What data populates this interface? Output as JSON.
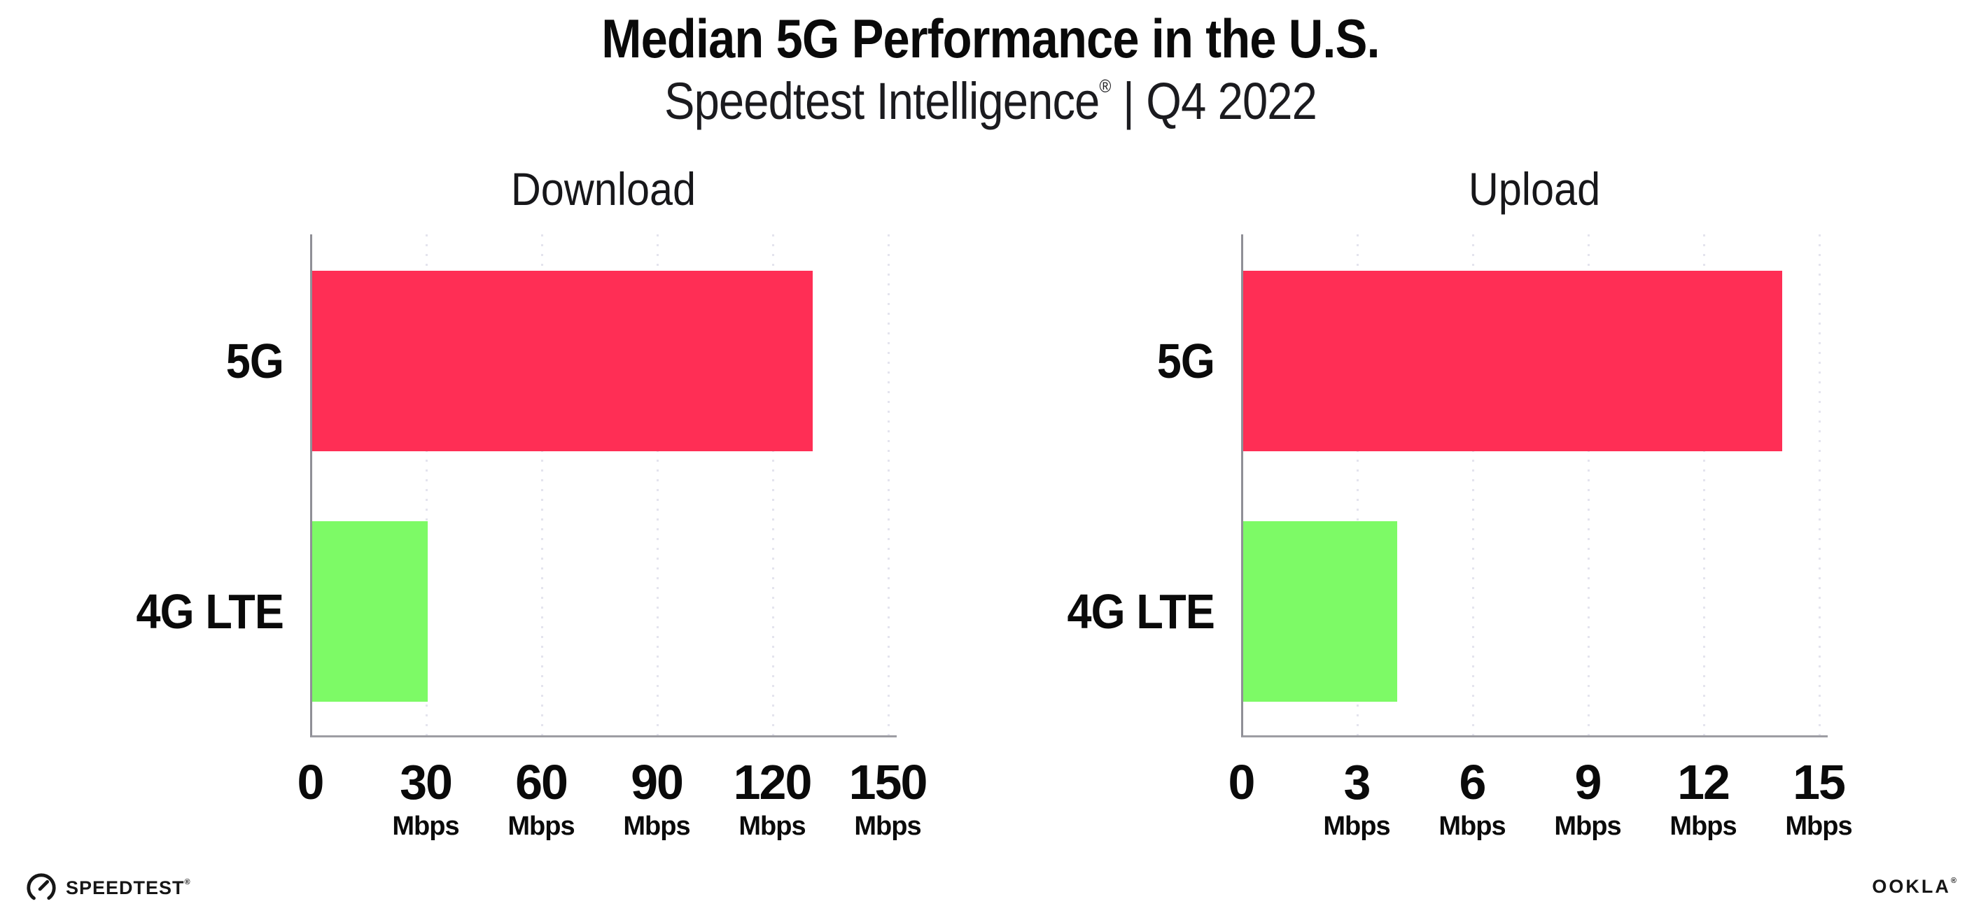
{
  "header": {
    "title": "Median 5G Performance in the U.S.",
    "subtitle_brand": "Speedtest Intelligence",
    "subtitle_reg": "®",
    "subtitle_rest": "| Q4 2022"
  },
  "footer": {
    "speedtest_label": "SPEEDTEST",
    "speedtest_reg": "®",
    "ookla_label": "OOKLA",
    "ookla_reg": "®"
  },
  "colors": {
    "bar_5g": "#ff2e55",
    "bar_4g_lte": "#7dfa66",
    "axis": "#8f8f96",
    "grid": "#e4e4ee",
    "text": "#0a0a0a"
  },
  "chart_data": [
    {
      "type": "bar",
      "orientation": "horizontal",
      "title": "Download",
      "categories": [
        "5G",
        "4G LTE"
      ],
      "values": [
        130,
        30
      ],
      "unit": "Mbps",
      "xlabel": "",
      "ylabel": "",
      "xlim": [
        0,
        150
      ],
      "xticks": [
        0,
        30,
        60,
        90,
        120,
        150
      ],
      "bar_colors": [
        "#ff2e55",
        "#7dfa66"
      ],
      "grid": "dotted-vertical",
      "legend": "none"
    },
    {
      "type": "bar",
      "orientation": "horizontal",
      "title": "Upload",
      "categories": [
        "5G",
        "4G LTE"
      ],
      "values": [
        14,
        4
      ],
      "unit": "Mbps",
      "xlabel": "",
      "ylabel": "",
      "xlim": [
        0,
        15
      ],
      "xticks": [
        0,
        3,
        6,
        9,
        12,
        15
      ],
      "bar_colors": [
        "#ff2e55",
        "#7dfa66"
      ],
      "grid": "dotted-vertical",
      "legend": "none"
    }
  ]
}
